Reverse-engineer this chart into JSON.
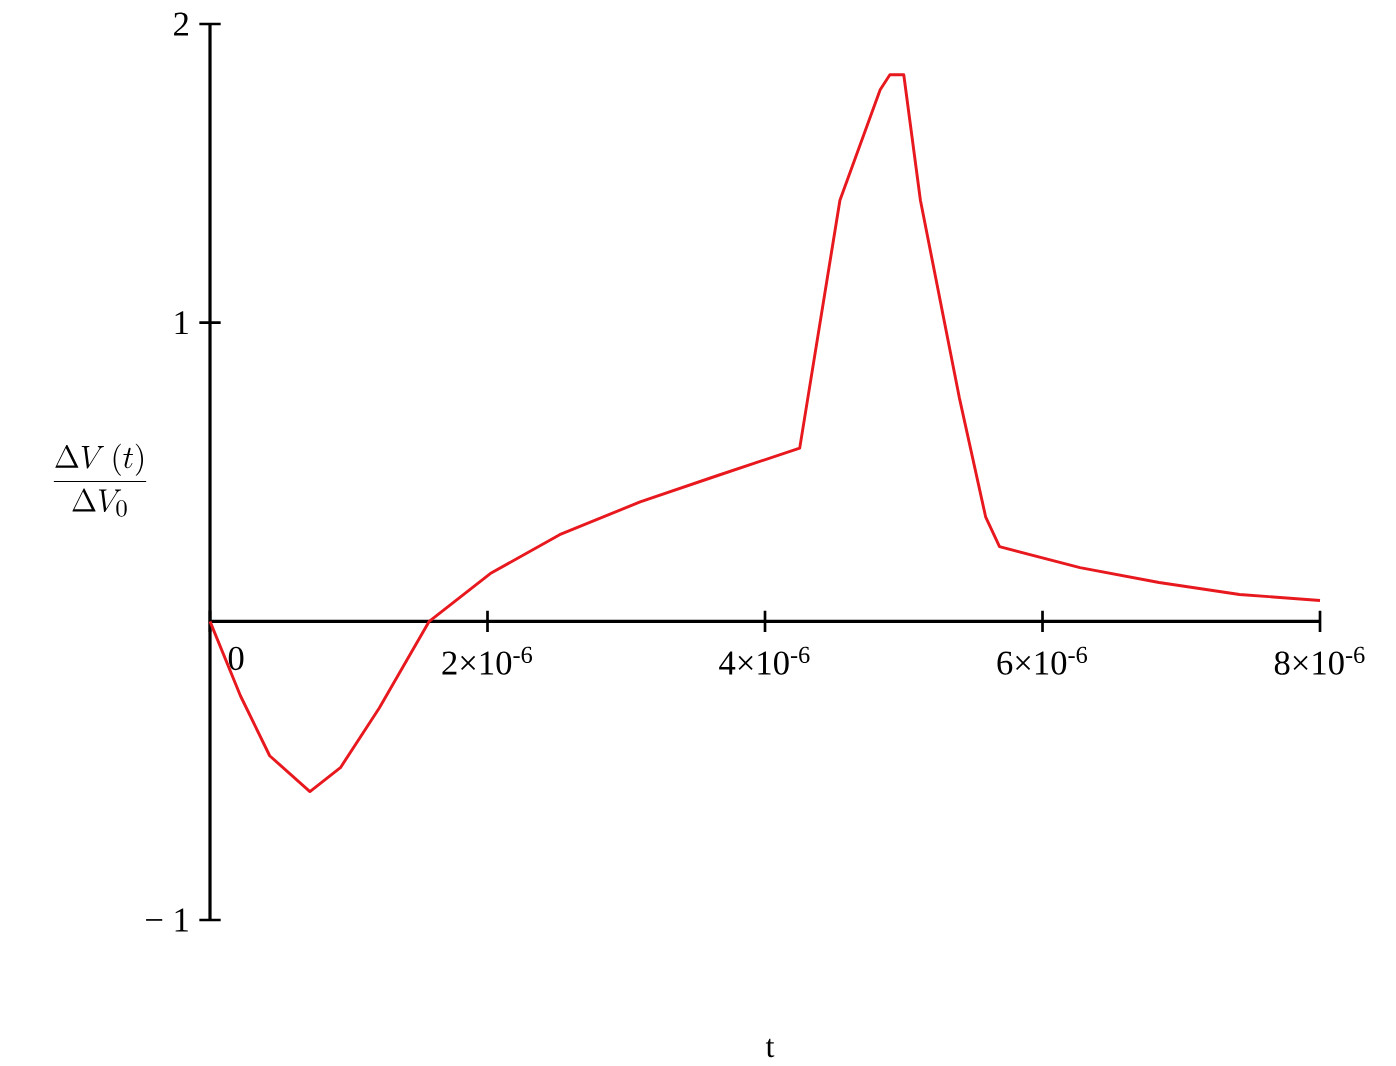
{
  "chart_data": {
    "type": "line",
    "xlabel": "t",
    "ylabel": "\\frac{\\Delta V\\,(t)}{\\Delta V_{0}}",
    "x": [
      0,
      2.2e-07,
      4.3e-07,
      7.2e-07,
      9.4e-07,
      1.22e-06,
      1.58e-06,
      2.02e-06,
      2.52e-06,
      3.1e-06,
      3.67e-06,
      4.25e-06,
      4.54e-06,
      4.83e-06,
      4.9e-06,
      5e-06,
      5.12e-06,
      5.4e-06,
      5.59e-06,
      5.69e-06,
      6.27e-06,
      6.84e-06,
      7.42e-06,
      8e-06
    ],
    "series": [
      {
        "color": "#e8191e",
        "values": [
          0,
          -0.25,
          -0.45,
          -0.57,
          -0.49,
          -0.29,
          0,
          0.16,
          0.29,
          0.4,
          0.49,
          0.58,
          1.41,
          1.78,
          1.83,
          1.83,
          1.41,
          0.75,
          0.35,
          0.25,
          0.18,
          0.13,
          0.09,
          0.07
        ]
      }
    ],
    "xlim": [
      0,
      8e-06
    ],
    "ylim": [
      -1,
      2
    ],
    "xticks": [
      0,
      {
        "value": 2e-06,
        "label": "2×10$^{-6}$"
      },
      {
        "value": 4e-06,
        "label": "4×10$^{-6}$"
      },
      {
        "value": 6e-06,
        "label": "6×10$^{-6}$"
      },
      {
        "value": 8e-06,
        "label": "8×10$^{-6}$"
      }
    ],
    "yticks": [
      {
        "value": -1,
        "label": "− 1"
      },
      1,
      2
    ],
    "grid": false,
    "legend": false,
    "marker": "none",
    "line_style": "solid"
  }
}
